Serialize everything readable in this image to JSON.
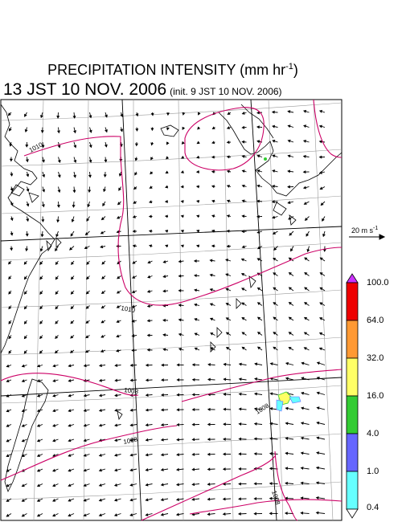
{
  "title": {
    "main": "PRECIPITATION INTENSITY (mm hr",
    "main_exp": "-1",
    "main_close": ")",
    "time": "13 JST 10 NOV. 2006",
    "init": "(init. 9 JST 10 NOV. 2006)"
  },
  "reference_vector": {
    "label": "20 m s",
    "exp": "-1"
  },
  "isobars": [
    "1010",
    "1010",
    "1008",
    "1008",
    "1008",
    "1008"
  ],
  "colorbar": {
    "levels": [
      "100.0",
      "64.0",
      "32.0",
      "16.0",
      "4.0",
      "1.0",
      "0.4"
    ],
    "colors": [
      "#ee0000",
      "#ff9933",
      "#ffff66",
      "#33cc33",
      "#6666ff",
      "#66ffff"
    ],
    "over_color": "#cc33ff",
    "under_color": "#ffffff"
  },
  "colors": {
    "isobar": "#cc0066",
    "coast": "#000000",
    "grid": "#999999",
    "vector": "#000000"
  }
}
